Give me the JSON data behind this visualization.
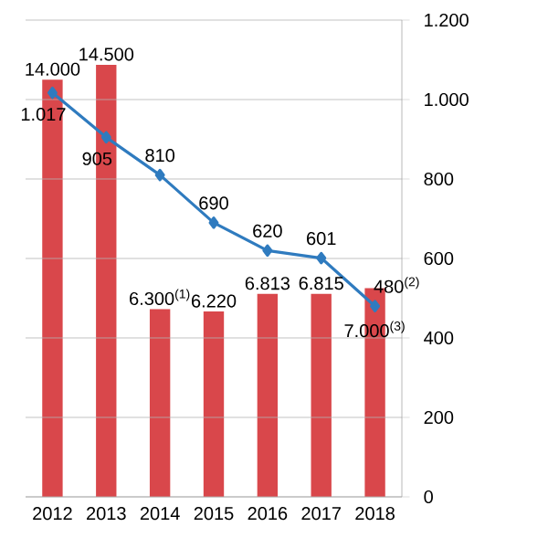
{
  "chart_data": {
    "type": "bar",
    "categories": [
      "2012",
      "2013",
      "2014",
      "2015",
      "2016",
      "2017",
      "2018"
    ],
    "ylim": [
      0,
      16000
    ],
    "y2lim": [
      0,
      1200
    ],
    "y2ticks": [
      {
        "value": 0,
        "label": "0"
      },
      {
        "value": 200,
        "label": "200"
      },
      {
        "value": 400,
        "label": "400"
      },
      {
        "value": 600,
        "label": "600"
      },
      {
        "value": 800,
        "label": "800"
      },
      {
        "value": 1000,
        "label": "1.000"
      },
      {
        "value": 1200,
        "label": "1.200"
      }
    ],
    "grid": "y",
    "series": [
      {
        "color": "#d9474b",
        "values": [
          14000,
          14500,
          6300,
          6220,
          6813,
          6815,
          7000
        ],
        "value_labels": [
          "14.000",
          "14.500",
          "6.300$^{(1)}$",
          "6.220",
          "6.813",
          "6.815",
          "7.000$^{(3)}$"
        ]
      },
      {
        "type": "line",
        "axis": "y2",
        "color": "#2f7bbf",
        "marker": "diamond",
        "line_style": "solid",
        "values": [
          1017,
          905,
          810,
          690,
          620,
          601,
          480
        ],
        "value_labels": [
          "1.017",
          "905",
          "810",
          "690",
          "620",
          "601",
          "480$^{(2)}$"
        ]
      }
    ]
  }
}
